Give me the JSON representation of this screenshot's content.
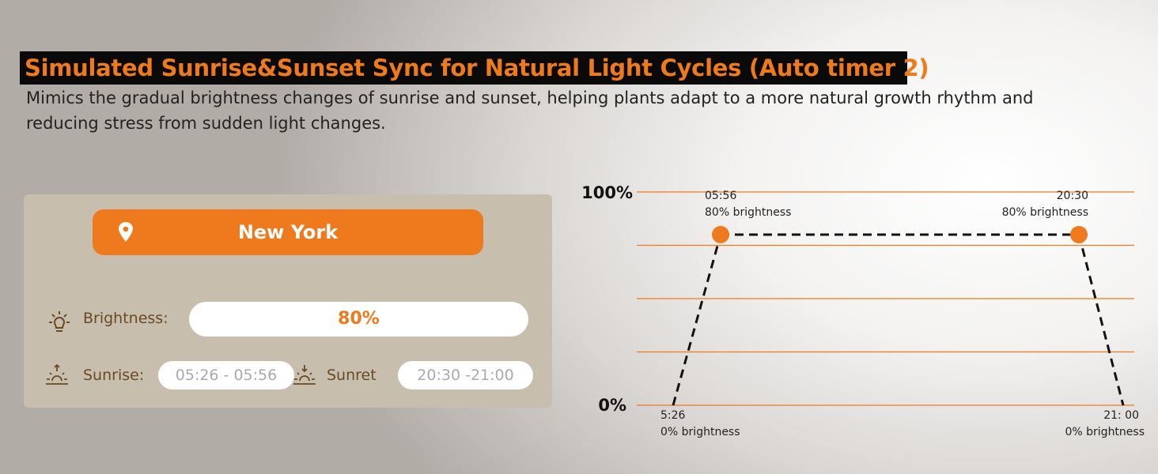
{
  "title": "Simulated Sunrise&Sunset Sync for Natural Light Cycles (Auto timer 2)",
  "subtitle": "Mimics the gradual brightness changes of sunrise and sunset, helping plants adapt to a more natural growth rhythm and reducing stress from sudden light changes.",
  "panel": {
    "location": "New York",
    "location_icon": "map-pin-icon",
    "brightness_label": "Brightness:",
    "brightness_value": "80%",
    "sunrise_label": "Sunrise:",
    "sunrise_value": "05:26 - 05:56",
    "sunset_label": "Sunret",
    "sunset_value": "20:30 -21:00"
  },
  "colors": {
    "accent": "#ee7a1d",
    "label": "#6b4a22",
    "panel": "#c7beae"
  },
  "chart_data": {
    "type": "line",
    "y_tick_labels": [
      "100%",
      "0%"
    ],
    "ylim": [
      0,
      100
    ],
    "grid": true,
    "points": [
      {
        "time": "5:26",
        "value": 0,
        "label_time": "5:26",
        "label_text": "0% brightness"
      },
      {
        "time": "05:56",
        "value": 80,
        "label_time": "05:56",
        "label_text": "80% brightness"
      },
      {
        "time": "20:30",
        "value": 80,
        "label_time": "20:30",
        "label_text": "80% brightness"
      },
      {
        "time": "21:00",
        "value": 0,
        "label_time": "21: 00",
        "label_text": "0% brightness"
      }
    ]
  }
}
